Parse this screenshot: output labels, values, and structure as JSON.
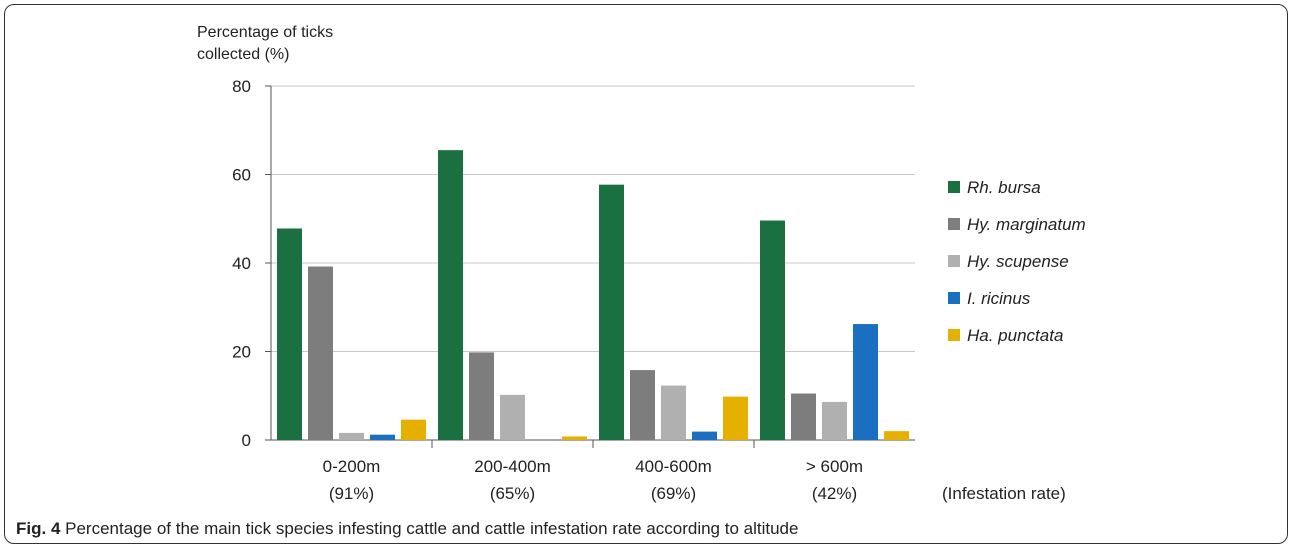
{
  "caption": {
    "label": "Fig. 4",
    "text": "Percentage of the main tick species infesting cattle and cattle infestation rate according to altitude"
  },
  "chart_data": {
    "type": "bar",
    "ylabel_line1": "Percentage of ticks",
    "ylabel_line2": "collected (%)",
    "xlabel": "(Infestation rate)",
    "ylim": [
      0,
      80
    ],
    "yticks": [
      "0",
      "20",
      "40",
      "60",
      "80"
    ],
    "grid": true,
    "legend_position": "right",
    "categories": [
      "0-200m",
      "200-400m",
      "400-600m",
      "> 600m"
    ],
    "infestation_rates": [
      "(91%)",
      "(65%)",
      "(69%)",
      "(42%)"
    ],
    "series": [
      {
        "name": "Rh. bursa",
        "color": "#1a7040",
        "values": [
          47.8,
          65.5,
          57.7,
          49.6
        ]
      },
      {
        "name": "Hy. marginatum",
        "color": "#7d7d7d",
        "values": [
          39.2,
          19.8,
          15.8,
          10.5
        ]
      },
      {
        "name": "Hy. scupense",
        "color": "#b0b0b0",
        "values": [
          1.6,
          10.2,
          12.3,
          8.6
        ]
      },
      {
        "name": "I. ricinus",
        "color": "#1b6fc0",
        "values": [
          1.2,
          0,
          1.9,
          26.2
        ]
      },
      {
        "name": "Ha. punctata",
        "color": "#e5b000",
        "values": [
          4.6,
          0.8,
          9.8,
          2.0
        ]
      }
    ]
  }
}
